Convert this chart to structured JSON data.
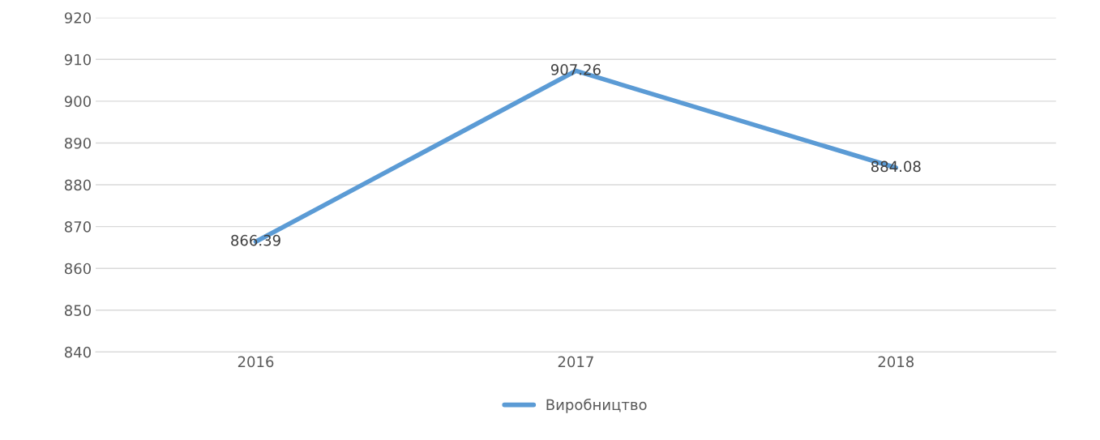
{
  "chart_data": {
    "type": "line",
    "categories": [
      "2016",
      "2017",
      "2018"
    ],
    "series": [
      {
        "name": "Виробництво",
        "color": "#5b9bd5",
        "values": [
          866.39,
          907.26,
          884.08
        ]
      }
    ],
    "ylim": [
      840,
      920
    ],
    "yticks": [
      840,
      850,
      860,
      870,
      880,
      890,
      900,
      910,
      920
    ],
    "grid": "y",
    "legend": "bottom",
    "data_labels": true,
    "marker": "none",
    "line_style": "solid"
  }
}
